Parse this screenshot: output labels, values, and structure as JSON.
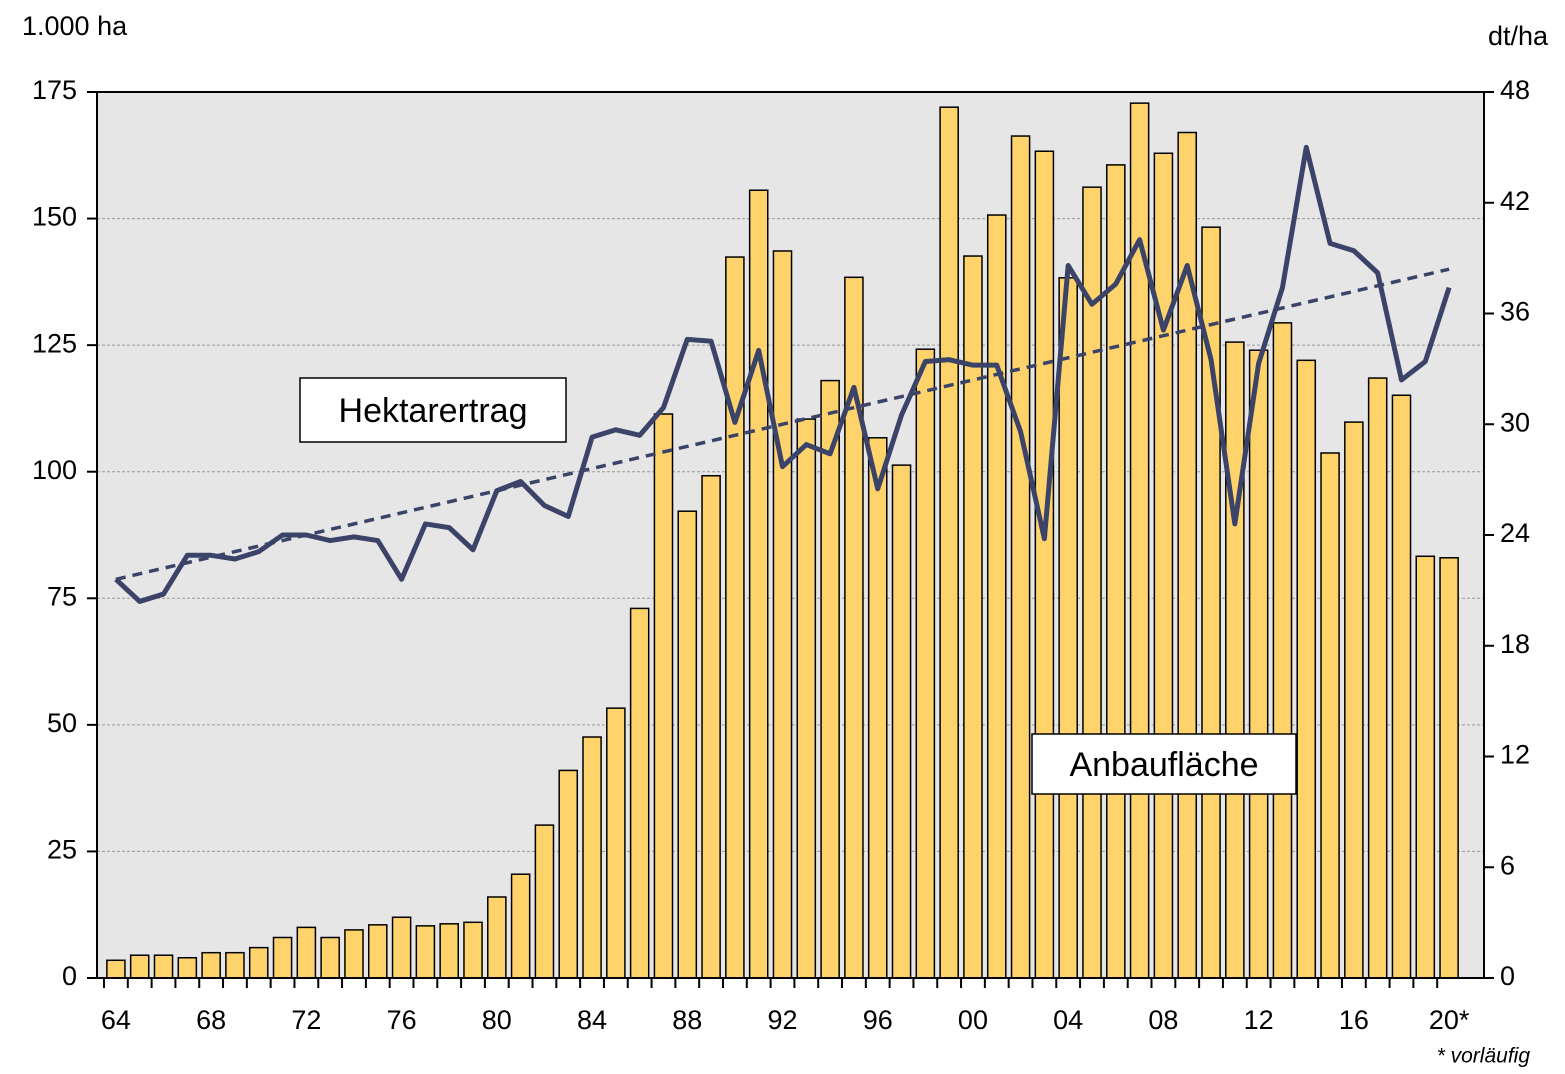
{
  "chart_data": {
    "type": "bar",
    "y_label": "1.000 ha",
    "y2_label": "dt/ha",
    "note": "* vorläufig",
    "categories": [
      "64",
      null,
      null,
      null,
      "68",
      null,
      null,
      null,
      "72",
      null,
      null,
      null,
      "76",
      null,
      null,
      null,
      "80",
      null,
      null,
      null,
      "84",
      null,
      null,
      null,
      "88",
      null,
      null,
      null,
      "92",
      null,
      null,
      null,
      "96",
      null,
      null,
      null,
      "00",
      null,
      null,
      null,
      "04",
      null,
      null,
      null,
      "08",
      null,
      null,
      null,
      "12",
      null,
      null,
      null,
      "16",
      null,
      null,
      null,
      "20*"
    ],
    "series": [
      {
        "name": "Anbaufläche",
        "type": "bar",
        "color": "#ffd36b",
        "values": [
          3.5,
          4.5,
          4.5,
          4,
          5,
          5,
          6,
          8,
          10,
          8,
          9.5,
          10.5,
          12,
          10.3,
          10.7,
          11,
          16,
          20.5,
          30.2,
          41,
          47.6,
          53.3,
          73,
          111.4,
          92.2,
          99.2,
          142.4,
          155.6,
          143.6,
          110.4,
          118,
          138.4,
          106.7,
          101.3,
          124.2,
          172,
          142.6,
          150.7,
          166.3,
          163.3,
          138.3,
          156.2,
          160.6,
          172.8,
          162.9,
          167,
          148.3,
          125.6,
          124,
          129.4,
          122,
          103.7,
          109.8,
          118.5,
          115.1,
          83.3,
          83
        ]
      },
      {
        "name": "Hektarertrag",
        "type": "line",
        "axis": "y2",
        "color": "#3b4468",
        "values": [
          21.6,
          20.4,
          20.8,
          22.9,
          22.9,
          22.7,
          23.1,
          24.0,
          24.0,
          23.7,
          23.9,
          23.7,
          21.6,
          24.6,
          24.4,
          23.2,
          26.4,
          26.9,
          25.6,
          25.0,
          29.3,
          29.7,
          29.4,
          30.9,
          34.6,
          34.5,
          30.1,
          34.0,
          27.7,
          28.9,
          28.4,
          32.0,
          26.5,
          30.5,
          33.4,
          33.5,
          33.2,
          33.2,
          29.6,
          23.8,
          38.6,
          36.5,
          37.6,
          40.0,
          35.1,
          38.6,
          33.5,
          24.6,
          33.3,
          37.4,
          45.0,
          39.8,
          39.4,
          38.2,
          32.4,
          33.4,
          37.4
        ]
      }
    ],
    "trend": {
      "axis": "y2",
      "color": "#3b4468",
      "dashed": true,
      "values": [
        21.6,
        38.4
      ]
    },
    "ylim": [
      0,
      175
    ],
    "yticks": [
      0,
      25,
      50,
      75,
      100,
      125,
      150,
      175
    ],
    "y2lim": [
      0,
      48
    ],
    "y2ticks": [
      0,
      6,
      12,
      18,
      24,
      30,
      36,
      42,
      48
    ],
    "grid": true,
    "background": "#e6e6e6"
  }
}
